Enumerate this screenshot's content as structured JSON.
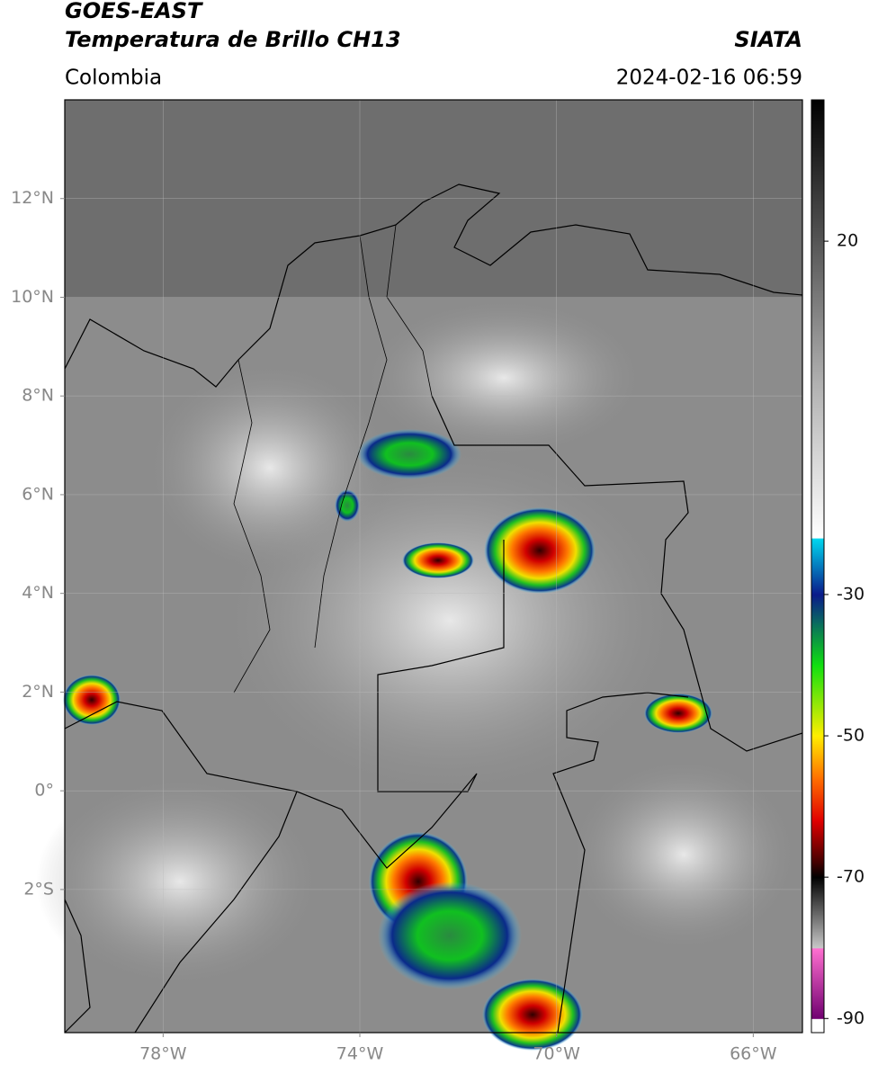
{
  "header": {
    "title": "GOES-EAST",
    "subtitle": "Temperatura de Brillo CH13",
    "region": "Colombia",
    "source": "SIATA",
    "datetime": "2024-02-16 06:59"
  },
  "map": {
    "xlim": [
      -80,
      -65
    ],
    "ylim": [
      -4.9,
      14
    ],
    "xticks": [
      {
        "value": -78,
        "label": "78°W"
      },
      {
        "value": -74,
        "label": "74°W"
      },
      {
        "value": -70,
        "label": "70°W"
      },
      {
        "value": -66,
        "label": "66°W"
      }
    ],
    "yticks": [
      {
        "value": 12,
        "label": "12°N"
      },
      {
        "value": 10,
        "label": "10°N"
      },
      {
        "value": 8,
        "label": "8°N"
      },
      {
        "value": 6,
        "label": "6°N"
      },
      {
        "value": 4,
        "label": "4°N"
      },
      {
        "value": 2,
        "label": "2°N"
      },
      {
        "value": 0,
        "label": "0°"
      },
      {
        "value": -2,
        "label": "2°S"
      }
    ],
    "grid": true
  },
  "colorbar": {
    "ylim": [
      -92,
      40
    ],
    "ticks": [
      20,
      -30,
      -50,
      -70,
      -90
    ],
    "stops": [
      {
        "value": 40,
        "color": "#000000"
      },
      {
        "value": 20,
        "color": "#555555"
      },
      {
        "value": 0,
        "color": "#b0b0b0"
      },
      {
        "value": -22,
        "color": "#ffffff"
      },
      {
        "value": -22.1,
        "color": "#00d8f0"
      },
      {
        "value": -30,
        "color": "#0a1a8a"
      },
      {
        "value": -34,
        "color": "#0a6a60"
      },
      {
        "value": -40,
        "color": "#10e010"
      },
      {
        "value": -50,
        "color": "#ffee00"
      },
      {
        "value": -56,
        "color": "#ff7000"
      },
      {
        "value": -62,
        "color": "#e00000"
      },
      {
        "value": -68,
        "color": "#400000"
      },
      {
        "value": -70,
        "color": "#000000"
      },
      {
        "value": -80,
        "color": "#c8c8c8"
      },
      {
        "value": -80.1,
        "color": "#ff70d0"
      },
      {
        "value": -90,
        "color": "#700070"
      },
      {
        "value": -90.1,
        "color": "#ffffff"
      },
      {
        "value": -92,
        "color": "#ffffff"
      }
    ]
  }
}
